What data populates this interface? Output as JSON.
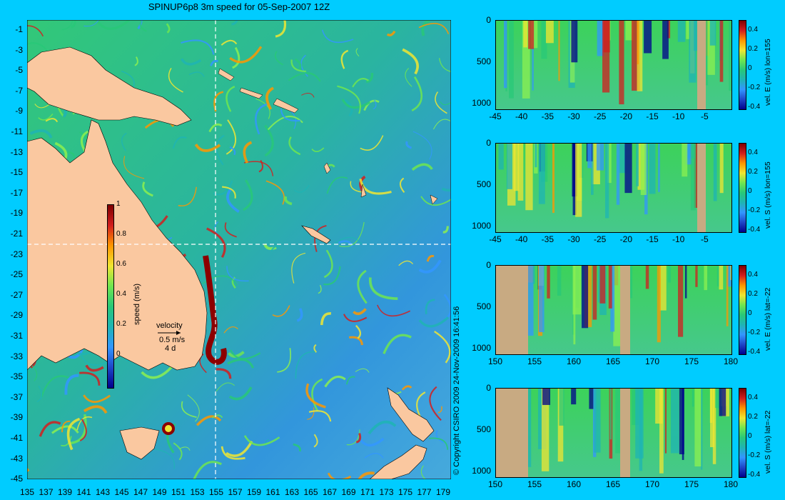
{
  "title": "SPINUP6p8 3m speed for 05-Sep-2007 12Z",
  "map": {
    "lon_ticks": [
      "135",
      "137",
      "139",
      "141",
      "143",
      "145",
      "147",
      "149",
      "151",
      "153",
      "155",
      "157",
      "159",
      "161",
      "163",
      "165",
      "167",
      "169",
      "171",
      "173",
      "175",
      "177",
      "179"
    ],
    "lat_ticks": [
      "-1",
      "-3",
      "-5",
      "-7",
      "-9",
      "-11",
      "-13",
      "-15",
      "-17",
      "-19",
      "-21",
      "-23",
      "-25",
      "-27",
      "-29",
      "-31",
      "-33",
      "-35",
      "-37",
      "-39",
      "-41",
      "-43",
      "-45"
    ],
    "crosshair_lon": 155,
    "crosshair_lat": -22,
    "colorbar": {
      "label": "speed (m/s)",
      "ticks": [
        "1",
        "0.8",
        "0.6",
        "0.4",
        "0.2",
        "0"
      ]
    },
    "velocity_key": {
      "title": "velocity",
      "scale": "0.5 m/s",
      "time": "4 d"
    }
  },
  "credit": "© Copyright CSIRO 2009   24-Nov-2009 16:41:56",
  "colors": {
    "background": "#00ccff",
    "land": "#fac8a0",
    "section_land": "#c8aa82"
  },
  "panels": [
    {
      "label": "vel. E (m/s) lon=155",
      "y_ticks": [
        "0",
        "500",
        "1000"
      ],
      "x_ticks": [
        "-45",
        "-40",
        "-35",
        "-30",
        "-25",
        "-20",
        "-15",
        "-10",
        "-5"
      ],
      "c_ticks": [
        "0.4",
        "0.2",
        "0",
        "-0.2",
        "-0.4"
      ]
    },
    {
      "label": "vel. S (m/s) lon=155",
      "y_ticks": [
        "0",
        "500",
        "1000"
      ],
      "x_ticks": [
        "-45",
        "-40",
        "-35",
        "-30",
        "-25",
        "-20",
        "-15",
        "-10",
        "-5"
      ],
      "c_ticks": [
        "0.4",
        "0.2",
        "0",
        "-0.2",
        "-0.4"
      ]
    },
    {
      "label": "vel. E (m/s) lat=-22",
      "y_ticks": [
        "0",
        "500",
        "1000"
      ],
      "x_ticks": [
        "150",
        "155",
        "160",
        "165",
        "170",
        "175",
        "180"
      ],
      "c_ticks": [
        "0.4",
        "0.2",
        "0",
        "-0.2",
        "-0.4"
      ]
    },
    {
      "label": "vel. S (m/s) lat=-22",
      "y_ticks": [
        "0",
        "500",
        "1000"
      ],
      "x_ticks": [
        "150",
        "155",
        "160",
        "165",
        "170",
        "175",
        "180"
      ],
      "c_ticks": [
        "0.4",
        "0.2",
        "0",
        "-0.2",
        "-0.4"
      ]
    }
  ]
}
